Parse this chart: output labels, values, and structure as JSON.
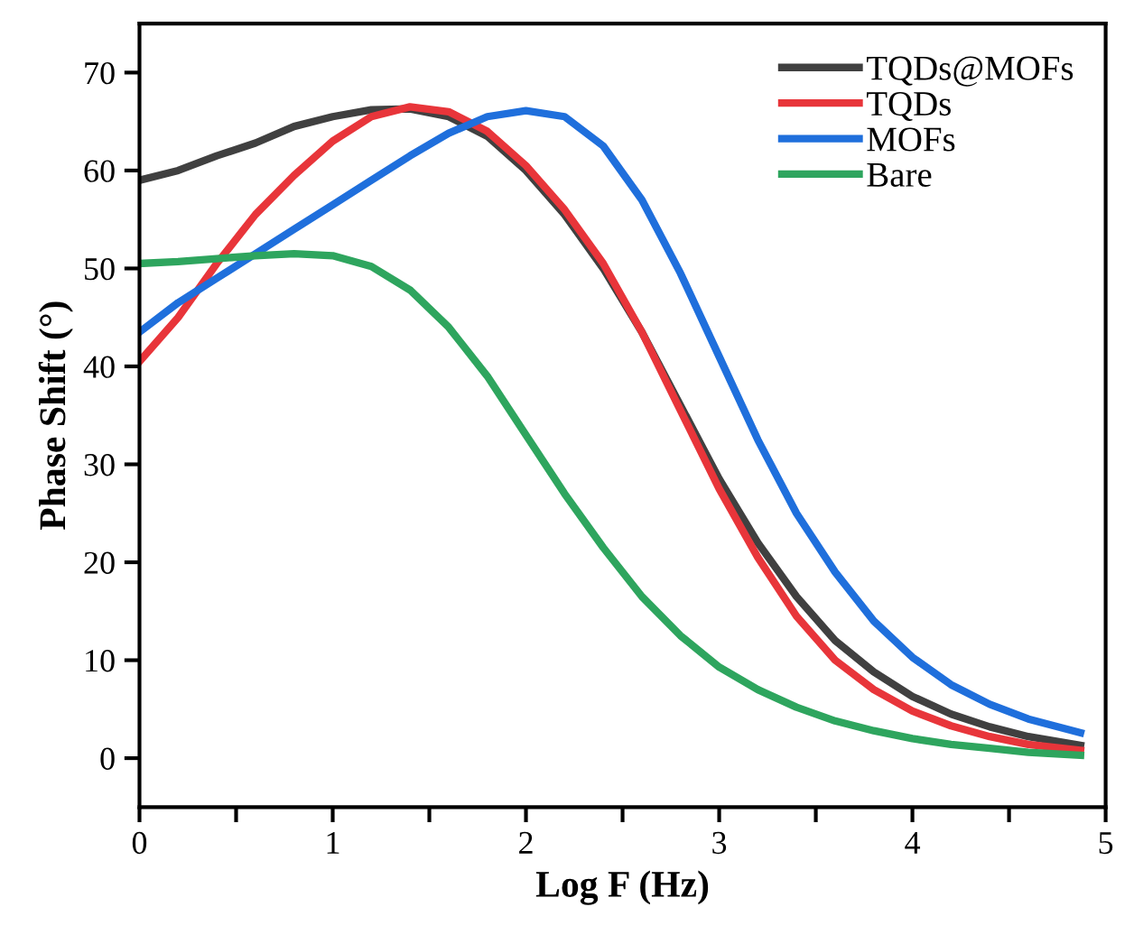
{
  "chart_data": {
    "type": "line",
    "xlabel": "Log F (Hz)",
    "ylabel": "Phase Shift (°)",
    "x": [
      0,
      0.2,
      0.4,
      0.6,
      0.8,
      1.0,
      1.2,
      1.4,
      1.6,
      1.8,
      2.0,
      2.2,
      2.4,
      2.6,
      2.8,
      3.0,
      3.2,
      3.4,
      3.6,
      3.8,
      4.0,
      4.2,
      4.4,
      4.6,
      4.87
    ],
    "series": [
      {
        "name": "TQDs@MOFs",
        "color": "#404040",
        "values": [
          59,
          60,
          61.5,
          62.8,
          64.5,
          65.5,
          66.2,
          66.3,
          65.5,
          63.5,
          60,
          55.5,
          50,
          43.5,
          36,
          28.5,
          22,
          16.5,
          12,
          8.8,
          6.3,
          4.5,
          3.2,
          2.2,
          1.3
        ]
      },
      {
        "name": "TQDs",
        "color": "#e8353a",
        "values": [
          40.5,
          45,
          50.5,
          55.5,
          59.5,
          63,
          65.5,
          66.5,
          66,
          64,
          60.5,
          56,
          50.5,
          43.5,
          35.5,
          27.5,
          20.5,
          14.5,
          10,
          7,
          4.8,
          3.3,
          2.2,
          1.4,
          0.8
        ]
      },
      {
        "name": "MOFs",
        "color": "#1f6fdc",
        "values": [
          43.5,
          46.5,
          49,
          51.5,
          54,
          56.5,
          59,
          61.5,
          63.8,
          65.5,
          66.1,
          65.5,
          62.5,
          57,
          49.5,
          41,
          32.5,
          25,
          19,
          14,
          10.3,
          7.5,
          5.5,
          4,
          2.6
        ]
      },
      {
        "name": "Bare",
        "color": "#2ea55e",
        "values": [
          50.5,
          50.7,
          51,
          51.3,
          51.5,
          51.3,
          50.2,
          47.8,
          44,
          39,
          33,
          27,
          21.5,
          16.5,
          12.5,
          9.3,
          7,
          5.2,
          3.8,
          2.8,
          2,
          1.4,
          1,
          0.6,
          0.3
        ]
      }
    ],
    "xlim": [
      0,
      5
    ],
    "ylim": [
      -5,
      75
    ],
    "xticks": [
      0,
      {
        "value": 0.5,
        "label": null
      },
      1,
      {
        "value": 1.5,
        "label": null
      },
      2,
      {
        "value": 2.5,
        "label": null
      },
      3,
      {
        "value": 3.5,
        "label": null
      },
      4,
      {
        "value": 4.5,
        "label": null
      },
      5
    ],
    "yticks": [
      0,
      10,
      20,
      30,
      40,
      50,
      60,
      70
    ],
    "legend": "top right",
    "grid": false,
    "marker": "none",
    "line_style": "solid"
  }
}
